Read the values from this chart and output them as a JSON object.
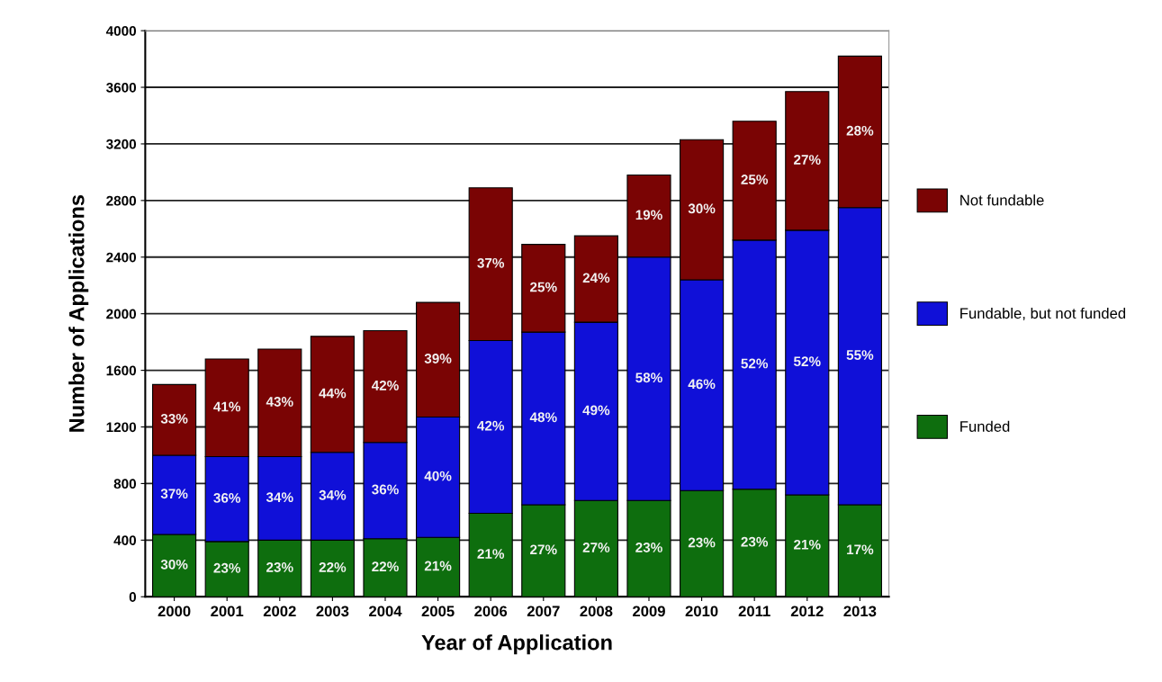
{
  "chart_data": {
    "type": "bar",
    "stacked": true,
    "xlabel": "Year of Application",
    "ylabel": "Number of Applications",
    "categories": [
      "2000",
      "2001",
      "2002",
      "2003",
      "2004",
      "2005",
      "2006",
      "2007",
      "2008",
      "2009",
      "2010",
      "2011",
      "2012",
      "2013"
    ],
    "series": [
      {
        "name": "Funded",
        "color": "#0e6e0e",
        "values": [
          440,
          390,
          400,
          400,
          410,
          420,
          590,
          650,
          680,
          680,
          750,
          760,
          720,
          650
        ]
      },
      {
        "name": "Fundable, but not funded",
        "color": "#1010d8",
        "values": [
          560,
          600,
          590,
          620,
          680,
          850,
          1220,
          1220,
          1260,
          1720,
          1490,
          1760,
          1870,
          2100
        ]
      },
      {
        "name": "Not fundable",
        "color": "#7a0404",
        "values": [
          500,
          690,
          760,
          820,
          790,
          810,
          1080,
          620,
          610,
          580,
          990,
          840,
          980,
          1070
        ]
      }
    ],
    "annotations": [
      "30%",
      "23%",
      "23%",
      "22%",
      "22%",
      "21%",
      "21%",
      "27%",
      "27%",
      "23%",
      "23%",
      "23%",
      "21%",
      "17%",
      "37%",
      "36%",
      "34%",
      "34%",
      "36%",
      "40%",
      "42%",
      "48%",
      "49%",
      "58%",
      "46%",
      "52%",
      "52%",
      "55%",
      "33%",
      "41%",
      "43%",
      "44%",
      "42%",
      "39%",
      "37%",
      "25%",
      "24%",
      "19%",
      "30%",
      "25%",
      "27%",
      "28%"
    ],
    "ylim": [
      0,
      4000
    ],
    "yticks": [
      0,
      400,
      800,
      1200,
      1600,
      2000,
      2400,
      2800,
      3200,
      3600,
      4000
    ],
    "grid": "y",
    "legend": "right"
  }
}
